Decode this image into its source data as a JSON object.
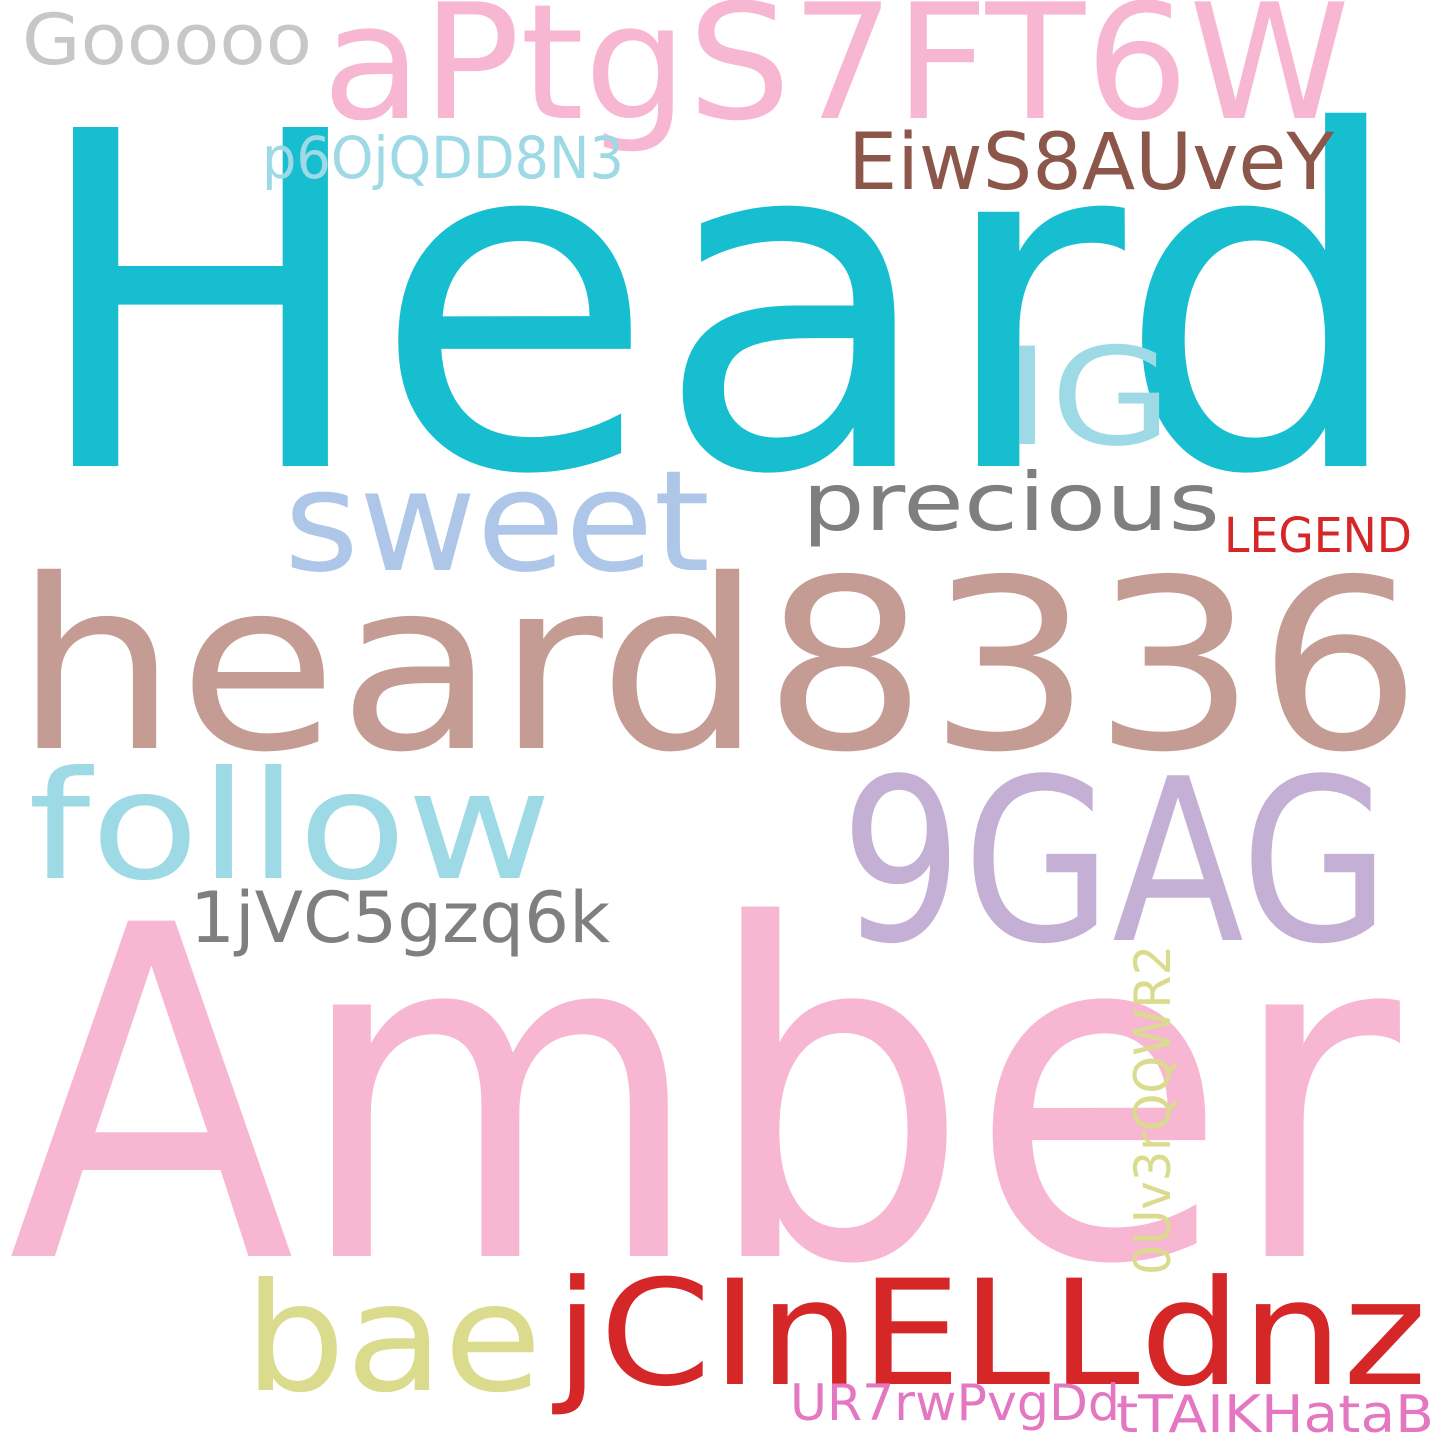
{
  "background": "#ffffff",
  "words": [
    {
      "text": "Heard",
      "color": "#17becf"
    },
    {
      "text": "Amber",
      "color": "#f7b6d2"
    },
    {
      "text": "heard8336",
      "color": "#c49c94"
    },
    {
      "text": "aPtgS7FT6W",
      "color": "#f7b6d2"
    },
    {
      "text": "9GAG",
      "color": "#c5b0d5"
    },
    {
      "text": "follow",
      "color": "#9edae5"
    },
    {
      "text": "sweet",
      "color": "#aec7e8"
    },
    {
      "text": "jCInELLdnz",
      "color": "#d62728"
    },
    {
      "text": "bae",
      "color": "#dbdb8d"
    },
    {
      "text": "IG",
      "color": "#9edae5"
    },
    {
      "text": "precious",
      "color": "#7f7f7f"
    },
    {
      "text": "EiwS8AUveY",
      "color": "#8c564b"
    },
    {
      "text": "Gooooo",
      "color": "#c7c7c7"
    },
    {
      "text": "1jVC5gzq6k",
      "color": "#7f7f7f"
    },
    {
      "text": "p6OjQDD8N3",
      "color": "#9edae5"
    },
    {
      "text": "0Uv3rQQWR2",
      "color": "#dbdb8d"
    },
    {
      "text": "LEGEND",
      "color": "#d62728"
    },
    {
      "text": "UR7rwPvgDd",
      "color": "#e377c2"
    },
    {
      "text": "tTAIKHataB",
      "color": "#e377c2"
    }
  ]
}
